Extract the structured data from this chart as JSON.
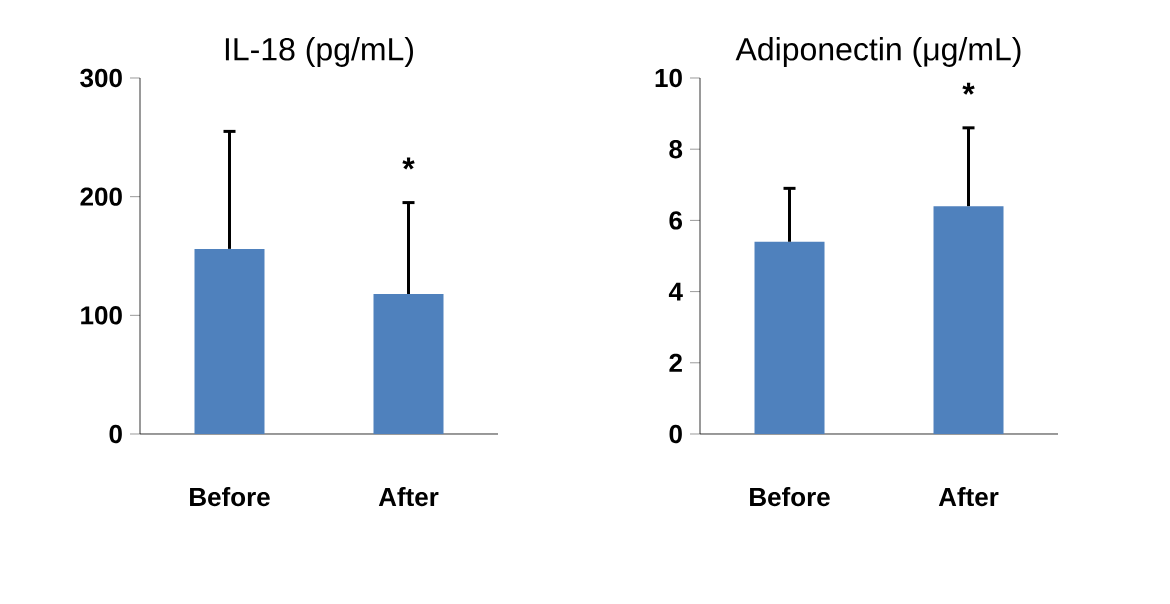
{
  "chart_data": [
    {
      "type": "bar",
      "title": "IL-18 (pg/mL)",
      "categories": [
        "Before",
        "After"
      ],
      "values": [
        156,
        118
      ],
      "color": "#4f81bd",
      "errors": [
        [
          156,
          255
        ],
        [
          118,
          195
        ]
      ],
      "ylim": [
        0,
        300
      ],
      "yticks": [
        0,
        100,
        200,
        300
      ],
      "annotations": [
        "*"
      ]
    },
    {
      "type": "bar",
      "title": "Adiponectin (μg/mL)",
      "categories": [
        "Before",
        "After"
      ],
      "values": [
        5.4,
        6.4
      ],
      "color": "#4f81bd",
      "errors": [
        [
          5.4,
          6.9
        ],
        [
          6.4,
          8.6
        ]
      ],
      "ylim": [
        0,
        10
      ],
      "yticks": [
        0,
        2,
        4,
        6,
        8,
        10
      ],
      "annotations": [
        "*"
      ]
    }
  ]
}
